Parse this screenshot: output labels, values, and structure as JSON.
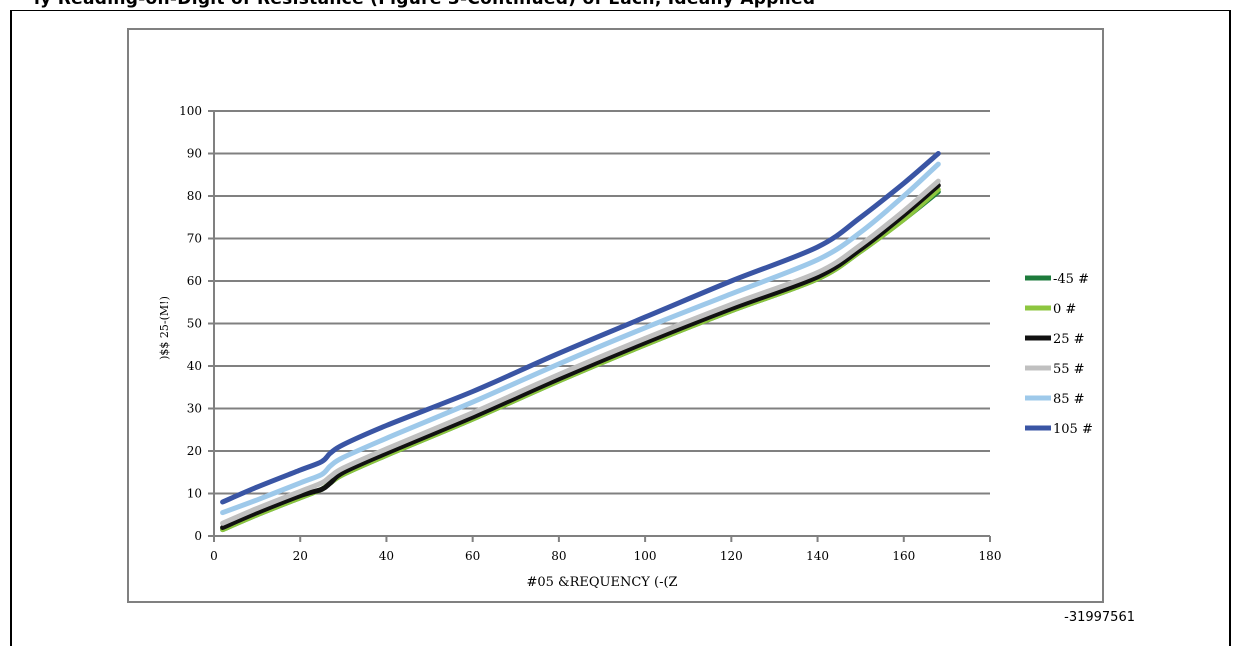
{
  "header_fragment": "ly Reading-on-Digit of Resistance (Figure 3-Continued) of Each, Ideally Applied",
  "document_code": "-31997561",
  "colors": {
    "grid": "#808080",
    "axis": "#808080",
    "panel_border": "#808080"
  },
  "chart_data": {
    "type": "line",
    "title": "",
    "xlabel": "#05 &REQUENCY (-(Z",
    "ylabel": ")$$ 25-(M!)",
    "xlim": [
      0,
      180
    ],
    "ylim": [
      0,
      100
    ],
    "xticks": [
      0,
      20,
      40,
      60,
      80,
      100,
      120,
      140,
      160,
      180
    ],
    "yticks": [
      0,
      10,
      20,
      30,
      40,
      50,
      60,
      70,
      80,
      90,
      100
    ],
    "grid": "horizontal",
    "legend_position": "right",
    "series": [
      {
        "name": "-45 #",
        "color": "#1e7b3c",
        "x": [
          2,
          10,
          20,
          25,
          27,
          30,
          40,
          60,
          80,
          100,
          120,
          140,
          150,
          160,
          168
        ],
        "y": [
          1.5,
          5,
          9,
          11,
          12.5,
          14.5,
          19,
          27.5,
          36.5,
          45,
          53,
          60.5,
          67,
          74.5,
          81
        ]
      },
      {
        "name": "0 #",
        "color": "#8dc63f",
        "x": [
          2,
          10,
          20,
          25,
          27,
          30,
          40,
          60,
          80,
          100,
          120,
          140,
          150,
          160,
          168
        ],
        "y": [
          1.5,
          5,
          9,
          11,
          12.5,
          14.5,
          19,
          27.5,
          36.5,
          45,
          53,
          60.5,
          67,
          74.5,
          81.5
        ]
      },
      {
        "name": "25 #",
        "color": "#111111",
        "x": [
          2,
          10,
          20,
          25,
          27,
          30,
          40,
          60,
          80,
          100,
          120,
          140,
          150,
          160,
          168
        ],
        "y": [
          2,
          5.5,
          9.5,
          11,
          12.5,
          15,
          19.5,
          28,
          37,
          45.5,
          53.5,
          61,
          67.5,
          75.5,
          82.5
        ]
      },
      {
        "name": "55 #",
        "color": "#c0c0c0",
        "x": [
          2,
          10,
          20,
          25,
          27,
          30,
          40,
          60,
          80,
          100,
          120,
          140,
          150,
          160,
          168
        ],
        "y": [
          3,
          6.5,
          10.5,
          12.5,
          14,
          16,
          20.5,
          29,
          38,
          46.5,
          54.5,
          62,
          68.5,
          76.5,
          83.5
        ]
      },
      {
        "name": "85 #",
        "color": "#9ec9ea",
        "x": [
          2,
          10,
          20,
          25,
          27,
          30,
          40,
          60,
          80,
          100,
          120,
          140,
          150,
          160,
          168
        ],
        "y": [
          5.5,
          8.5,
          12.5,
          14.5,
          16.5,
          18.5,
          23,
          31.5,
          40.5,
          49,
          57,
          65,
          71.5,
          80,
          87.5
        ]
      },
      {
        "name": "105 #",
        "color": "#3a55a4",
        "x": [
          2,
          10,
          20,
          25,
          27,
          30,
          40,
          60,
          80,
          100,
          120,
          140,
          150,
          160,
          168
        ],
        "y": [
          8,
          11.5,
          15.5,
          17.5,
          19.5,
          21.5,
          26,
          34,
          43,
          51.5,
          60,
          68,
          75,
          83,
          90
        ]
      }
    ]
  }
}
